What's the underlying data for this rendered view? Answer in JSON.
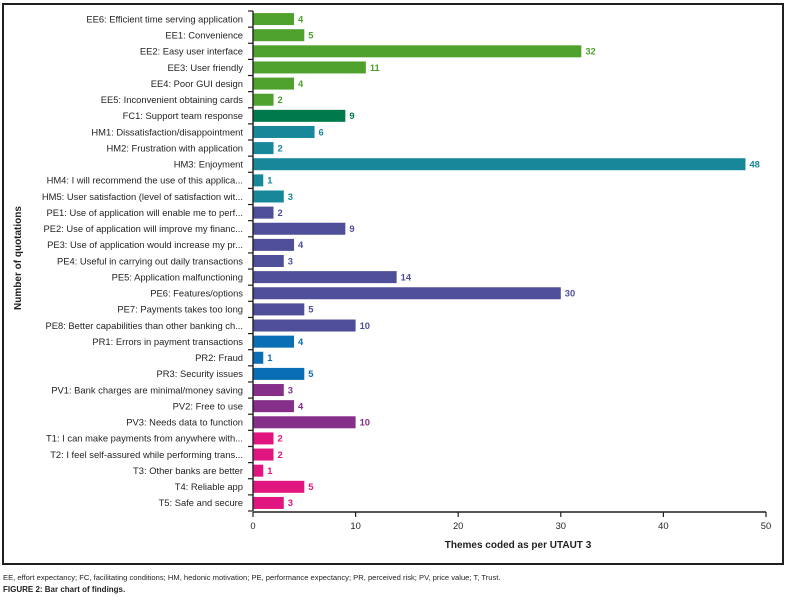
{
  "chart_data": {
    "type": "bar",
    "orientation": "horizontal",
    "title": "",
    "xlabel": "Themes coded as per UTAUT 3",
    "ylabel": "Number of quotations",
    "xlim": [
      0,
      50
    ],
    "xticks": [
      0,
      10,
      20,
      30,
      40,
      50
    ],
    "grid": false,
    "legend": "none",
    "groups": {
      "EE": "#4fa12e",
      "FC": "#007a4a",
      "HM": "#17889a",
      "PE": "#4f4f99",
      "PR": "#0a6eb4",
      "PV": "#852e8a",
      "T": "#e0157f"
    },
    "categories": [
      {
        "label": "EE6: Efficient time serving application",
        "value": 4,
        "group": "EE"
      },
      {
        "label": "EE1: Convenience",
        "value": 5,
        "group": "EE"
      },
      {
        "label": "EE2: Easy user interface",
        "value": 32,
        "group": "EE"
      },
      {
        "label": "EE3: User friendly",
        "value": 11,
        "group": "EE"
      },
      {
        "label": "EE4: Poor GUI design",
        "value": 4,
        "group": "EE"
      },
      {
        "label": "EE5: Inconvenient obtaining cards",
        "value": 2,
        "group": "EE"
      },
      {
        "label": "FC1: Support team response",
        "value": 9,
        "group": "FC"
      },
      {
        "label": "HM1: Dissatisfaction/disappointment",
        "value": 6,
        "group": "HM"
      },
      {
        "label": "HM2: Frustration with application",
        "value": 2,
        "group": "HM"
      },
      {
        "label": "HM3: Enjoyment",
        "value": 48,
        "group": "HM"
      },
      {
        "label": "HM4: I will recommend the use of this applica...",
        "value": 1,
        "group": "HM"
      },
      {
        "label": "HM5: User satisfaction (level of satisfaction wit...",
        "value": 3,
        "group": "HM"
      },
      {
        "label": "PE1: Use of application will enable me to perf...",
        "value": 2,
        "group": "PE"
      },
      {
        "label": "PE2: Use of application will improve my financ...",
        "value": 9,
        "group": "PE"
      },
      {
        "label": "PE3: Use of application would increase my pr...",
        "value": 4,
        "group": "PE"
      },
      {
        "label": "PE4: Useful in carrying out daily transactions",
        "value": 3,
        "group": "PE"
      },
      {
        "label": "PE5: Application malfunctioning",
        "value": 14,
        "group": "PE"
      },
      {
        "label": "PE6: Features/options",
        "value": 30,
        "group": "PE"
      },
      {
        "label": "PE7: Payments takes too long",
        "value": 5,
        "group": "PE"
      },
      {
        "label": "PE8: Better capabilities than other banking ch...",
        "value": 10,
        "group": "PE"
      },
      {
        "label": "PR1: Errors in payment transactions",
        "value": 4,
        "group": "PR"
      },
      {
        "label": "PR2: Fraud",
        "value": 1,
        "group": "PR"
      },
      {
        "label": "PR3: Security issues",
        "value": 5,
        "group": "PR"
      },
      {
        "label": "PV1: Bank charges are minimal/money saving",
        "value": 3,
        "group": "PV"
      },
      {
        "label": "PV2: Free to use",
        "value": 4,
        "group": "PV"
      },
      {
        "label": "PV3: Needs data to function",
        "value": 10,
        "group": "PV"
      },
      {
        "label": "T1: I can make payments from anywhere with...",
        "value": 2,
        "group": "T"
      },
      {
        "label": "T2: I feel self-assured while performing trans...",
        "value": 2,
        "group": "T"
      },
      {
        "label": "T3: Other banks are better",
        "value": 1,
        "group": "T"
      },
      {
        "label": "T4: Reliable app",
        "value": 5,
        "group": "T"
      },
      {
        "label": "T5: Safe and secure",
        "value": 3,
        "group": "T"
      }
    ]
  },
  "footnote": "EE, effort expectancy; FC, facilitating conditions; HM, hedonic motivation; PE, performance expectancy; PR, perceived risk; PV, price value; T, Trust.",
  "caption": "FIGURE 2: Bar chart of findings."
}
